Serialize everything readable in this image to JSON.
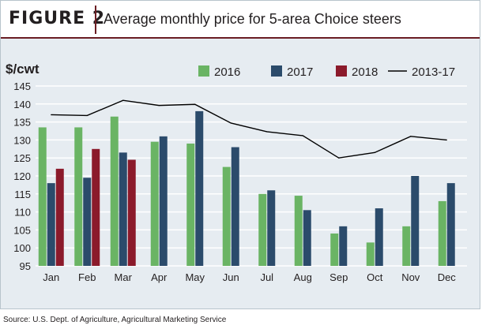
{
  "header": {
    "figure_label": "FIGURE 2",
    "title": "Average monthly price for 5-area Choice steers"
  },
  "source": "Source: U.S. Dept. of Agriculture, Agricultural Marketing Service",
  "colors": {
    "s2016": "#6ab464",
    "s2017": "#2b4b6b",
    "s2018": "#8b1a2b",
    "avg": "#000000",
    "grid": "#ffffff"
  },
  "chart_data": {
    "type": "bar",
    "title": "Average monthly price for 5-area Choice steers",
    "ylabel": "$/cwt",
    "xlabel": "",
    "ylim": [
      95,
      145
    ],
    "yticks": [
      95,
      100,
      105,
      110,
      115,
      120,
      125,
      130,
      135,
      140,
      145
    ],
    "grid": true,
    "legend": "top",
    "categories": [
      "Jan",
      "Feb",
      "Mar",
      "Apr",
      "May",
      "Jun",
      "Jul",
      "Aug",
      "Sep",
      "Oct",
      "Nov",
      "Dec"
    ],
    "series": [
      {
        "name": "2016",
        "type": "bar",
        "values": [
          133.5,
          133.5,
          136.5,
          129.5,
          129,
          122.5,
          115,
          114.5,
          104,
          101.5,
          106,
          113
        ]
      },
      {
        "name": "2017",
        "type": "bar",
        "values": [
          118,
          119.5,
          126.5,
          131,
          138,
          128,
          116,
          110.5,
          106,
          111,
          120,
          118
        ]
      },
      {
        "name": "2018",
        "type": "bar",
        "values": [
          122,
          127.5,
          124.5,
          null,
          null,
          null,
          null,
          null,
          null,
          null,
          null,
          null
        ]
      },
      {
        "name": "2013-17",
        "type": "line",
        "values": [
          137,
          136.8,
          141,
          139.6,
          139.9,
          134.7,
          132.3,
          131.2,
          125,
          126.5,
          131,
          130
        ]
      }
    ]
  }
}
